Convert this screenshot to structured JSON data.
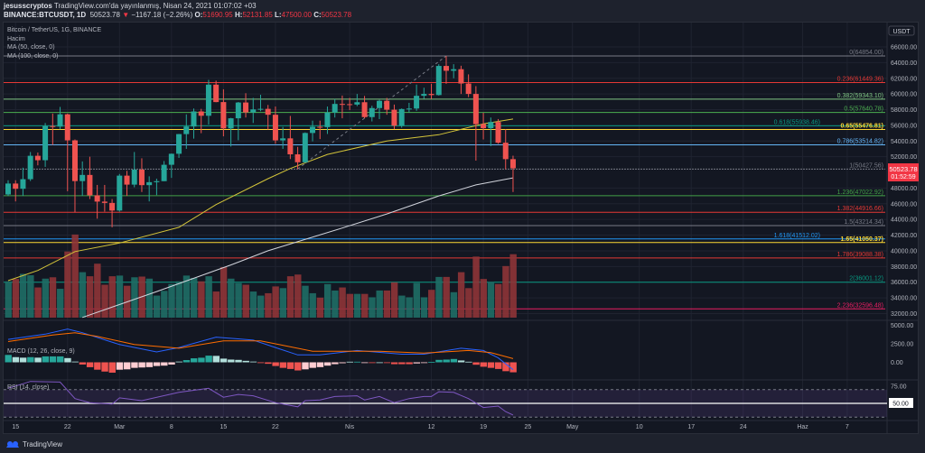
{
  "header": {
    "author": "jesusscryptos",
    "published": "TradingView.com'da yayınlanmış, Nisan 24, 2021 01:07:02 +03",
    "symbol": "BINANCE:BTCUSDT, 1D",
    "last": "50523.78",
    "change": "−1167.18 (−2.26%)",
    "o_label": "O:",
    "o": "51690.95",
    "h_label": "H:",
    "h": "52131.85",
    "l_label": "L:",
    "l": "47500.00",
    "c_label": "C:",
    "c": "50523.78"
  },
  "legend": {
    "title": "Bitcoin / TetherUS, 1G, BINANCE",
    "volume": "Hacim",
    "ma50": "MA (50, close, 0)",
    "ma100": "MA (100, close, 0)",
    "macd": "MACD (12, 26, close, 9)",
    "rsi": "RSI (14, close)"
  },
  "axis": {
    "currency": "USDT",
    "price_badge": "50523.78",
    "countdown": "01:52:59",
    "rsi_badge": "50.00"
  },
  "footer": {
    "brand": "TradingView"
  },
  "colors": {
    "up": "#26a69a",
    "down": "#ef5350",
    "bg": "#131722",
    "ma50": "#d4c53a",
    "ma100": "#d1d4dc",
    "macd": "#2962ff",
    "signal": "#ff6d00",
    "rsi": "#7e57c2"
  },
  "chart_data": {
    "type": "candlestick",
    "ylim": [
      31000,
      67500
    ],
    "y_ticks": [
      "66000.00",
      "64000.00",
      "62000.00",
      "60000.00",
      "58000.00",
      "56000.00",
      "54000.00",
      "52000.00",
      "48000.00",
      "46000.00",
      "44000.00",
      "42000.00",
      "40000.00",
      "38000.00",
      "36000.00",
      "34000.00",
      "32000.00"
    ],
    "x_ticks": [
      {
        "label": "15",
        "day": 1
      },
      {
        "label": "22",
        "day": 8
      },
      {
        "label": "Mar",
        "day": 15
      },
      {
        "label": "8",
        "day": 22
      },
      {
        "label": "15",
        "day": 29
      },
      {
        "label": "22",
        "day": 36
      },
      {
        "label": "Nis",
        "day": 46
      },
      {
        "label": "12",
        "day": 57
      },
      {
        "label": "19",
        "day": 64
      },
      {
        "label": "25",
        "day": 70
      },
      {
        "label": "May",
        "day": 76
      },
      {
        "label": "10",
        "day": 85
      },
      {
        "label": "17",
        "day": 92
      },
      {
        "label": "24",
        "day": 99
      },
      {
        "label": "Haz",
        "day": 107
      },
      {
        "label": "7",
        "day": 113
      }
    ],
    "ohlc": [
      [
        47180,
        49000,
        47000,
        48577
      ],
      [
        48577,
        49000,
        46300,
        47911
      ],
      [
        47911,
        50600,
        47000,
        49133
      ],
      [
        49133,
        52600,
        48900,
        52119
      ],
      [
        52119,
        52530,
        50900,
        51552
      ],
      [
        51552,
        56300,
        50700,
        55906
      ],
      [
        55906,
        57500,
        53500,
        55841
      ],
      [
        55841,
        58350,
        55500,
        57408
      ],
      [
        57408,
        57500,
        47600,
        54087
      ],
      [
        54087,
        54200,
        44900,
        48891
      ],
      [
        48891,
        51400,
        47000,
        49676
      ],
      [
        49676,
        52000,
        46600,
        47073
      ],
      [
        47073,
        48400,
        44100,
        46276
      ],
      [
        46276,
        48400,
        45000,
        46106
      ],
      [
        46106,
        46600,
        43000,
        45135
      ],
      [
        45135,
        49800,
        45000,
        49587
      ],
      [
        49587,
        50200,
        47000,
        48440
      ],
      [
        48440,
        52600,
        48100,
        50349
      ],
      [
        50349,
        51800,
        47500,
        48374
      ],
      [
        48374,
        49500,
        46300,
        48751
      ],
      [
        48751,
        49200,
        47100,
        48882
      ],
      [
        48882,
        51450,
        48880,
        50971
      ],
      [
        50971,
        52400,
        49300,
        52375
      ],
      [
        52375,
        54900,
        51850,
        54884
      ],
      [
        54884,
        57400,
        53000,
        55851
      ],
      [
        55851,
        58150,
        54300,
        57773
      ],
      [
        57773,
        58100,
        55000,
        57221
      ],
      [
        57221,
        61800,
        56100,
        61188
      ],
      [
        61188,
        61700,
        58950,
        58968
      ],
      [
        58968,
        60600,
        54600,
        55605
      ],
      [
        55605,
        56950,
        53300,
        56900
      ],
      [
        56900,
        58980,
        54100,
        58912
      ],
      [
        58912,
        60100,
        57000,
        57648
      ],
      [
        57648,
        59500,
        56300,
        58030
      ],
      [
        58030,
        59900,
        57800,
        58102
      ],
      [
        58102,
        58600,
        55450,
        57351
      ],
      [
        57351,
        58400,
        53650,
        54083
      ],
      [
        54083,
        55800,
        53000,
        54340
      ],
      [
        54340,
        57200,
        51700,
        52303
      ],
      [
        52303,
        53250,
        50430,
        51293
      ],
      [
        51293,
        55100,
        51200,
        55025
      ],
      [
        55025,
        56600,
        53950,
        55817
      ],
      [
        55817,
        56600,
        54250,
        55777
      ],
      [
        55777,
        58400,
        54900,
        57635
      ],
      [
        57635,
        59350,
        57000,
        58730
      ],
      [
        58730,
        59800,
        56900,
        58700
      ],
      [
        58700,
        59500,
        57950,
        58650
      ],
      [
        58650,
        60000,
        58450,
        58950
      ],
      [
        58950,
        59750,
        56900,
        57051
      ],
      [
        57051,
        58500,
        56500,
        58202
      ],
      [
        58202,
        59250,
        56800,
        59129
      ],
      [
        59129,
        59500,
        57350,
        57991
      ],
      [
        57991,
        58650,
        55500,
        55953
      ],
      [
        55953,
        58150,
        55700,
        58077
      ],
      [
        58077,
        58870,
        57650,
        58142
      ],
      [
        58142,
        61200,
        57850,
        59770
      ],
      [
        59770,
        60800,
        59380,
        60007
      ],
      [
        60007,
        61300,
        59350,
        59860
      ],
      [
        59860,
        63800,
        59800,
        63575
      ],
      [
        63575,
        64854,
        61300,
        62959
      ],
      [
        62959,
        63800,
        62000,
        63159
      ],
      [
        63159,
        63600,
        60000,
        61334
      ],
      [
        61334,
        62500,
        59600,
        60006
      ],
      [
        60006,
        61000,
        51500,
        56150
      ],
      [
        56150,
        57600,
        54200,
        55633
      ],
      [
        55633,
        57000,
        53350,
        56425
      ],
      [
        56425,
        56800,
        53650,
        53787
      ],
      [
        53787,
        55500,
        50400,
        51690
      ],
      [
        51690.95,
        52131.85,
        47500,
        50523.78
      ]
    ],
    "volume": [
      69550,
      74100,
      83850,
      81250,
      57850,
      74750,
      77350,
      55250,
      126750,
      159250,
      87100,
      79300,
      103350,
      63050,
      79300,
      80600,
      61100,
      77350,
      78650,
      74750,
      42250,
      51350,
      64350,
      69550,
      80600,
      76050,
      69550,
      79300,
      50050,
      96850,
      74750,
      66300,
      63050,
      50050,
      42250,
      46800,
      59800,
      56550,
      79300,
      82550,
      61100,
      46800,
      38350,
      64350,
      52000,
      57850,
      45500,
      45500,
      45500,
      39000,
      52000,
      52000,
      67600,
      42250,
      39000,
      66300,
      39000,
      53300,
      78000,
      78000,
      48750,
      87100,
      56550,
      117000,
      74100,
      68250,
      64350,
      98800,
      121550
    ],
    "ma50": [
      [
        0,
        36200
      ],
      [
        4,
        37500
      ],
      [
        9,
        39900
      ],
      [
        15,
        41000
      ],
      [
        23,
        43000
      ],
      [
        28,
        45900
      ],
      [
        35,
        49200
      ],
      [
        38,
        50500
      ],
      [
        43,
        52300
      ],
      [
        51,
        54000
      ],
      [
        58,
        54800
      ],
      [
        64,
        56200
      ],
      [
        68,
        56800
      ]
    ],
    "ma100": [
      [
        10,
        31500
      ],
      [
        20,
        34800
      ],
      [
        30,
        38200
      ],
      [
        35,
        40000
      ],
      [
        45,
        42900
      ],
      [
        51,
        44700
      ],
      [
        58,
        47000
      ],
      [
        63,
        48400
      ],
      [
        68,
        49300
      ]
    ],
    "trendline": [
      [
        39,
        50430
      ],
      [
        59,
        64854
      ]
    ],
    "fib": [
      {
        "label": "0(64854.00)",
        "price": 64854,
        "color": "#787b86"
      },
      {
        "label": "0.236(61449.36)",
        "price": 61449.36,
        "color": "#e53935"
      },
      {
        "label": "0.382(59343.10)",
        "price": 59343.1,
        "color": "#81c784"
      },
      {
        "label": "0.5(57640.78)",
        "price": 57640.78,
        "color": "#4caf50"
      },
      {
        "label": "0.618(55938.46)",
        "price": 55938.46,
        "color": "#089981"
      },
      {
        "label": "0.65(55476.81)",
        "price": 55476.81,
        "color": "#fdd835"
      },
      {
        "label": "0.786(53514.82)",
        "price": 53514.82,
        "color": "#64b5f6"
      },
      {
        "label": "1(50427.56)",
        "price": 50427.56,
        "color": "#787b86"
      },
      {
        "label": "1.236(47022.92)",
        "price": 47022.92,
        "color": "#43a047"
      },
      {
        "label": "1.382(44916.66)",
        "price": 44916.66,
        "color": "#e53935"
      },
      {
        "label": "1.5(43214.34)",
        "price": 43214.34,
        "color": "#787b86"
      },
      {
        "label": "1.618(41512.02)",
        "price": 41512.02,
        "color": "#2196f3"
      },
      {
        "label": "1.65(41050.37)",
        "price": 41050.37,
        "color": "#fdd835"
      },
      {
        "label": "1.786(39088.38)",
        "price": 39088.38,
        "color": "#e53935"
      },
      {
        "label": "2(36001.12)",
        "price": 36001.12,
        "color": "#089981"
      },
      {
        "label": "2.236(32596.48)",
        "price": 32596.48,
        "color": "#e91e63"
      }
    ],
    "macd": {
      "y_ticks": [
        "5000.00",
        "2500.00",
        "0.00"
      ],
      "hist": [
        1000,
        700,
        630,
        700,
        630,
        800,
        800,
        800,
        570,
        100,
        -300,
        -660,
        -1000,
        -1250,
        -1400,
        -1000,
        -950,
        -750,
        -700,
        -650,
        -500,
        -450,
        -300,
        100,
        300,
        540,
        620,
        900,
        870,
        500,
        370,
        330,
        200,
        100,
        -100,
        -200,
        -500,
        -750,
        -900,
        -1100,
        -950,
        -750,
        -650,
        -450,
        -250,
        -120,
        80,
        80,
        -60,
        -60,
        0,
        -50,
        -250,
        -250,
        -250,
        -150,
        -50,
        50,
        330,
        370,
        450,
        250,
        80,
        -330,
        -600,
        -750,
        -900,
        -1200,
        -1350
      ],
      "macd": [
        [
          0,
          3100
        ],
        [
          5,
          3800
        ],
        [
          8,
          4500
        ],
        [
          10,
          4000
        ],
        [
          15,
          2400
        ],
        [
          20,
          1400
        ],
        [
          23,
          2000
        ],
        [
          28,
          3400
        ],
        [
          33,
          3000
        ],
        [
          36,
          2000
        ],
        [
          39,
          1000
        ],
        [
          42,
          1000
        ],
        [
          47,
          1600
        ],
        [
          53,
          1100
        ],
        [
          56,
          1100
        ],
        [
          61,
          1900
        ],
        [
          64,
          1600
        ],
        [
          66,
          600
        ],
        [
          68,
          -1000
        ]
      ],
      "signal": [
        [
          0,
          2800
        ],
        [
          6,
          3700
        ],
        [
          9,
          4000
        ],
        [
          12,
          3500
        ],
        [
          17,
          2400
        ],
        [
          23,
          1900
        ],
        [
          29,
          2900
        ],
        [
          34,
          2900
        ],
        [
          41,
          1500
        ],
        [
          50,
          1500
        ],
        [
          56,
          1250
        ],
        [
          62,
          1600
        ],
        [
          65,
          1300
        ],
        [
          68,
          500
        ]
      ]
    },
    "rsi": {
      "y_ticks": [
        "75.00"
      ],
      "bands": [
        30,
        70
      ],
      "values": [
        [
          0,
          72
        ],
        [
          3,
          82
        ],
        [
          7,
          81
        ],
        [
          9,
          57
        ],
        [
          11,
          51
        ],
        [
          14,
          49
        ],
        [
          15,
          58
        ],
        [
          18,
          54
        ],
        [
          23,
          66
        ],
        [
          27,
          72
        ],
        [
          29,
          59
        ],
        [
          31,
          63
        ],
        [
          33,
          61
        ],
        [
          36,
          51
        ],
        [
          39,
          45
        ],
        [
          40,
          54
        ],
        [
          42,
          55
        ],
        [
          44,
          60
        ],
        [
          47,
          61
        ],
        [
          48,
          55
        ],
        [
          50,
          60
        ],
        [
          52,
          51
        ],
        [
          54,
          57
        ],
        [
          56,
          60
        ],
        [
          57,
          60
        ],
        [
          58,
          67
        ],
        [
          60,
          66
        ],
        [
          62,
          57
        ],
        [
          64,
          44
        ],
        [
          66,
          46
        ],
        [
          67,
          38
        ],
        [
          68,
          33
        ]
      ]
    }
  }
}
